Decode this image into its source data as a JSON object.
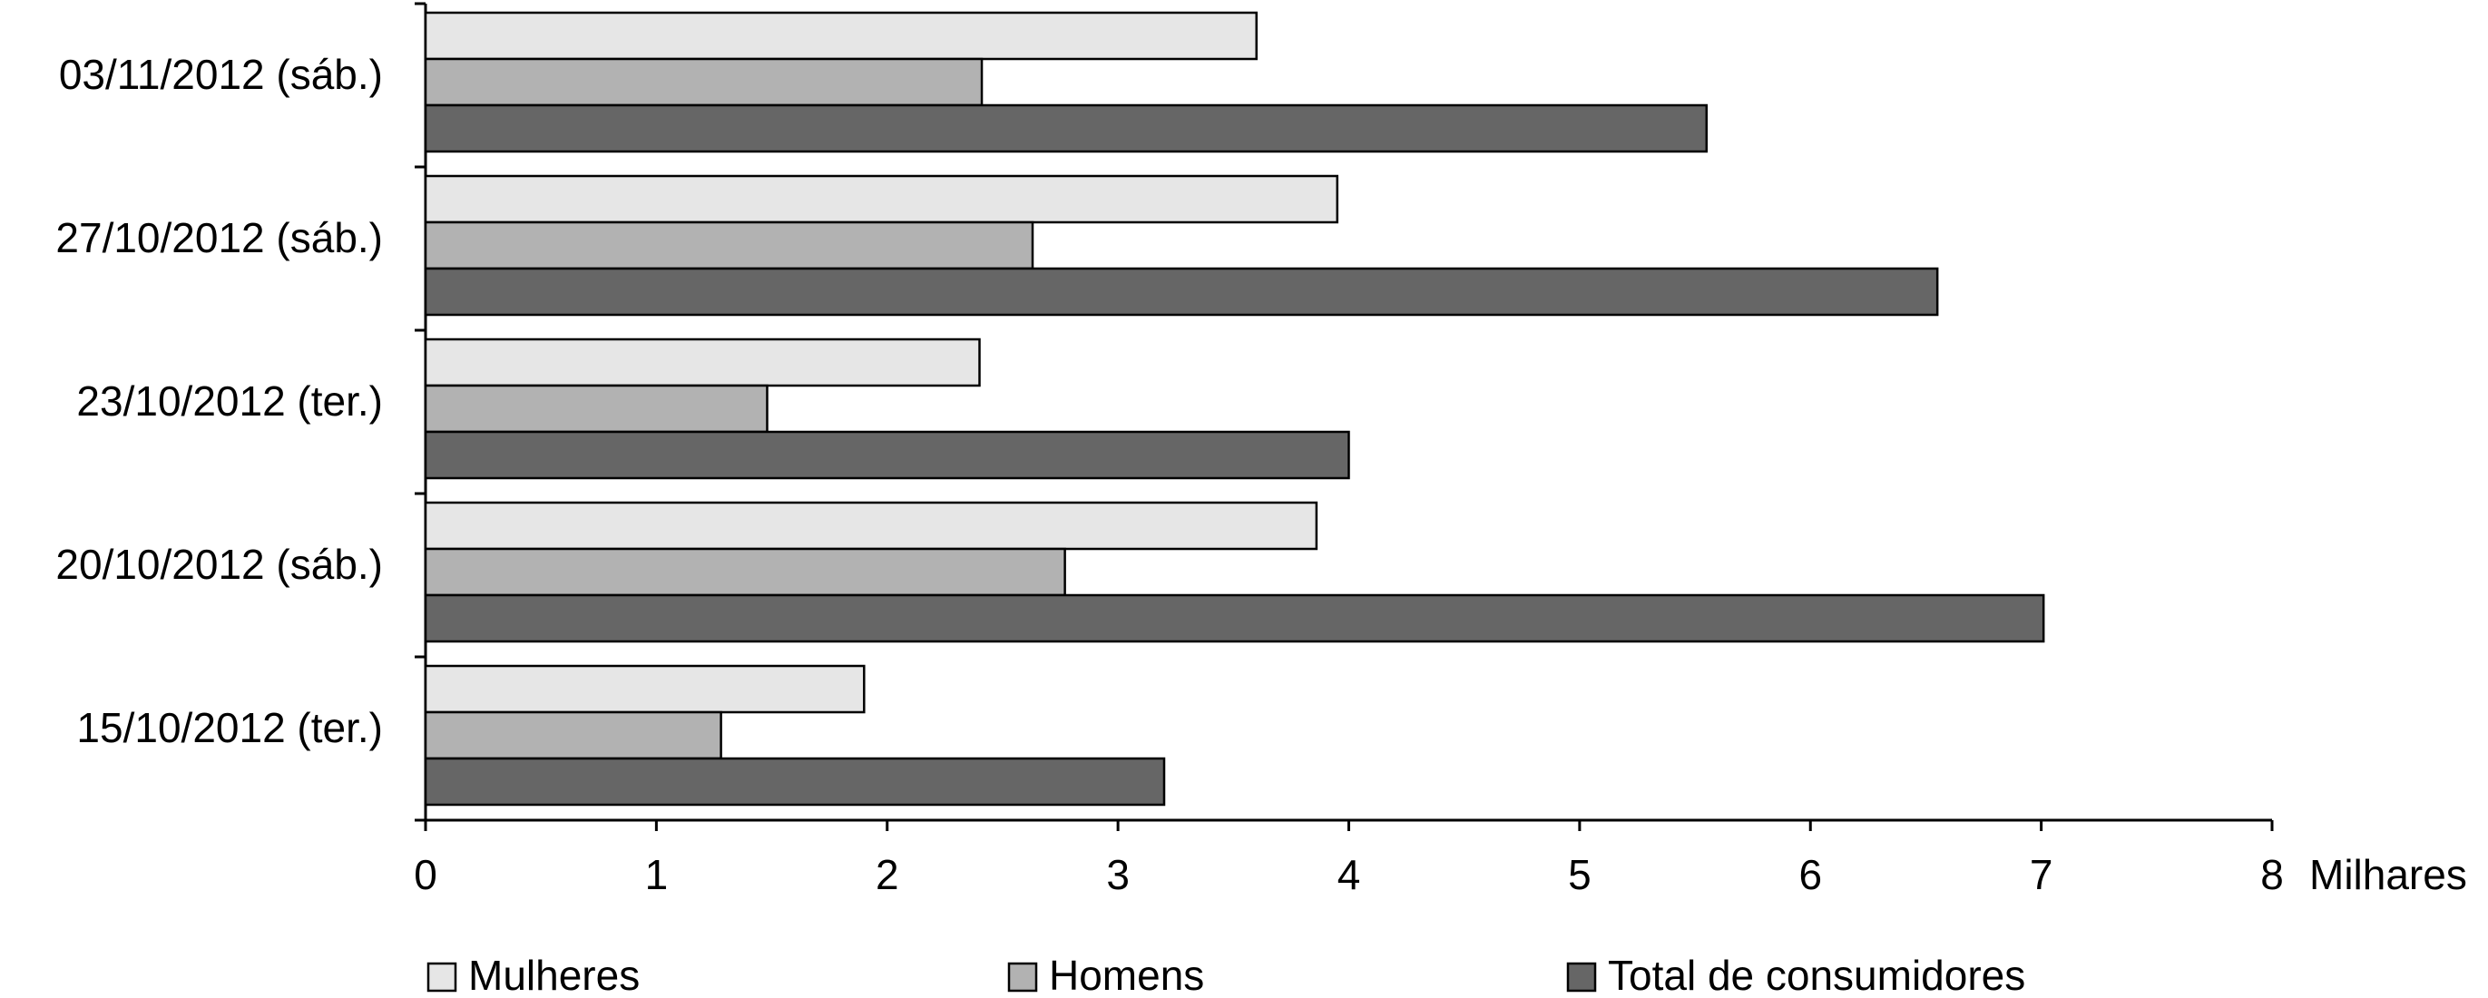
{
  "chart_data": {
    "type": "hbar",
    "categories": [
      "03/11/2012 (sáb.)",
      "27/10/2012 (sáb.)",
      "23/10/2012 (ter.)",
      "20/10/2012 (sáb.)",
      "15/10/2012 (ter.)"
    ],
    "series": [
      {
        "name": "Mulheres",
        "color": "#e6e6e6",
        "values": [
          3.6,
          3.95,
          2.4,
          3.86,
          1.9
        ]
      },
      {
        "name": "Homens",
        "color": "#b2b2b2",
        "values": [
          2.41,
          2.63,
          1.48,
          2.77,
          1.28
        ]
      },
      {
        "name": "Total de consumidores",
        "color": "#666666",
        "values": [
          5.55,
          6.55,
          4.0,
          7.01,
          3.2
        ]
      }
    ],
    "x_label": "Milhares",
    "xlim": [
      0,
      8
    ],
    "xticks": [
      0,
      1,
      2,
      3,
      4,
      5,
      6,
      7,
      8
    ]
  }
}
